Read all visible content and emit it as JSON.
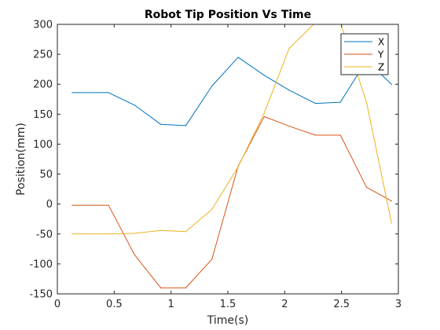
{
  "chart_data": {
    "type": "line",
    "title": "Robot Tip Position Vs Time",
    "xlabel": "Time(s)",
    "ylabel": "Position(mm)",
    "xlim": [
      0,
      3
    ],
    "ylim": [
      -150,
      300
    ],
    "xticks": [
      0,
      0.5,
      1,
      1.5,
      2,
      2.5,
      3
    ],
    "xtick_labels": [
      "0",
      "0.5",
      "1",
      "1.5",
      "2",
      "2.5",
      "3"
    ],
    "yticks": [
      -150,
      -100,
      -50,
      0,
      50,
      100,
      150,
      200,
      250,
      300
    ],
    "ytick_labels": [
      "-150",
      "-100",
      "-50",
      "0",
      "50",
      "100",
      "150",
      "200",
      "250",
      "300"
    ],
    "grid": false,
    "box": true,
    "legend_position": "top-right",
    "x": [
      0.13,
      0.45,
      0.68,
      0.91,
      1.13,
      1.36,
      1.59,
      1.82,
      2.04,
      2.27,
      2.49,
      2.72,
      2.94
    ],
    "series": [
      {
        "name": "X",
        "color": "#0072BD",
        "values": [
          186,
          186,
          165,
          133,
          131,
          197,
          245,
          215,
          190,
          168,
          170,
          240,
          200
        ]
      },
      {
        "name": "Y",
        "color": "#D95319",
        "values": [
          -2,
          -2,
          -85,
          -140,
          -140,
          -92,
          63,
          146,
          130,
          115,
          115,
          28,
          5
        ]
      },
      {
        "name": "Z",
        "color": "#EDB120",
        "values": [
          -50,
          -50,
          -49,
          -44,
          -46,
          -9,
          62,
          152,
          260,
          303,
          303,
          170,
          -32
        ]
      }
    ]
  }
}
